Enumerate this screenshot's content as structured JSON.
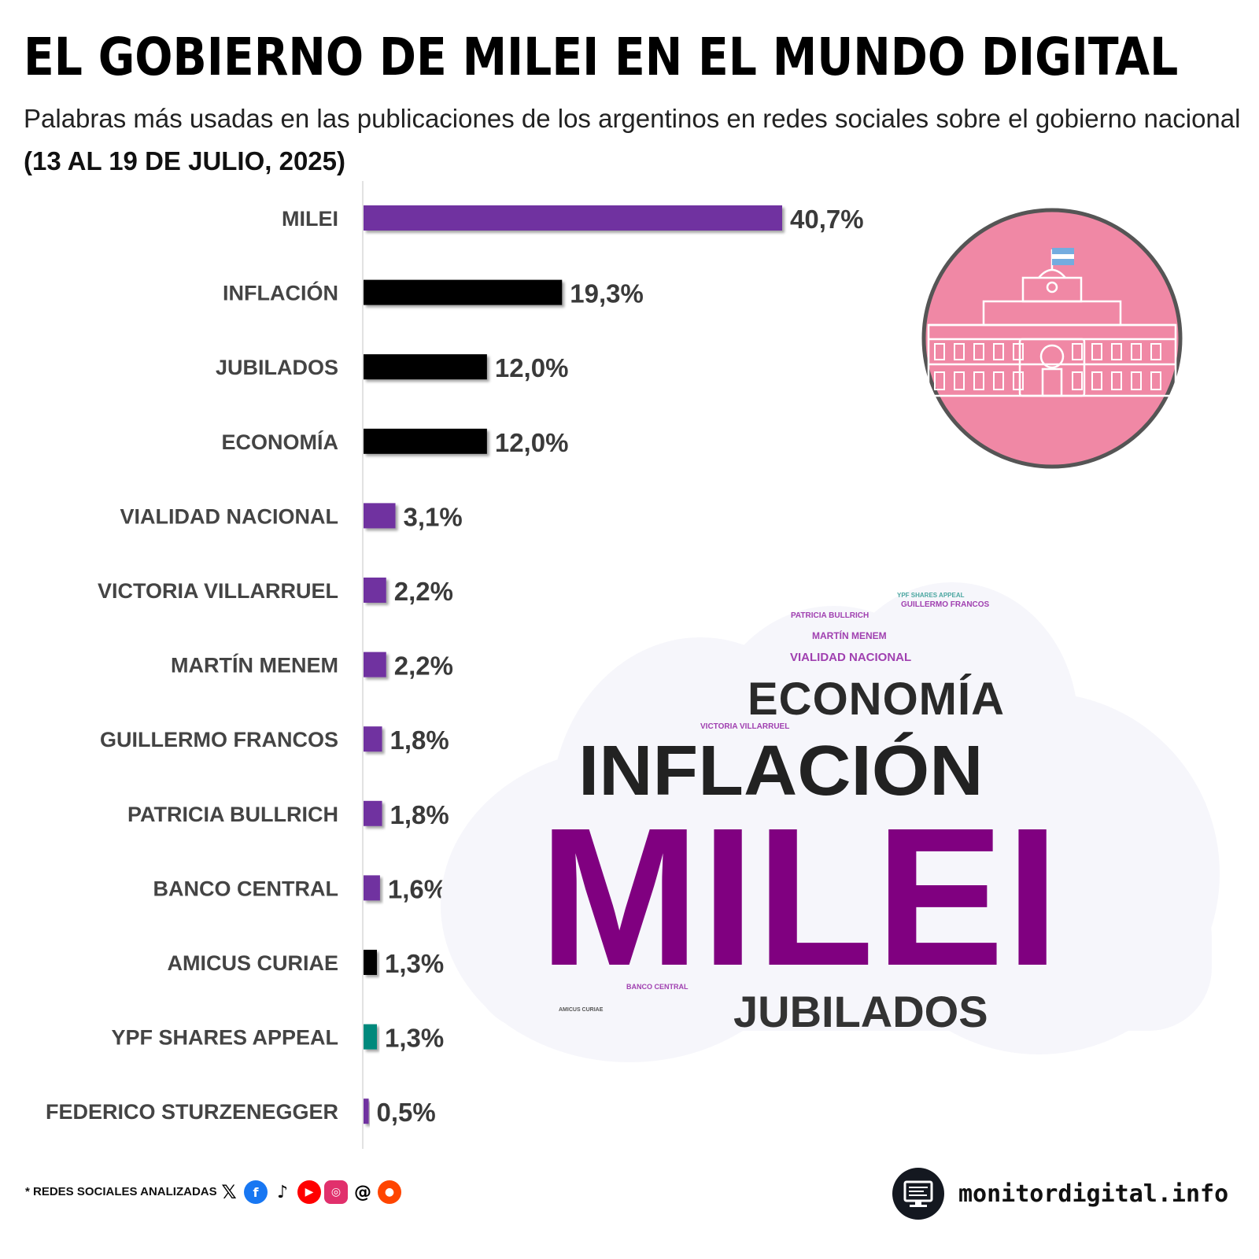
{
  "header": {
    "title": "EL GOBIERNO DE MILEI EN EL MUNDO DIGITAL",
    "subtitle": "Palabras más usadas en las publicaciones de los argentinos en redes sociales sobre el gobierno nacional",
    "date_range": "(13 AL 19 DE JULIO, 2025)"
  },
  "colors": {
    "purple": "#7030A0",
    "black": "#000000",
    "teal": "#00897B",
    "cloud_purple": "#800080",
    "seal_pink": "#F088A5"
  },
  "chart_data": {
    "type": "bar",
    "orientation": "horizontal",
    "categories": [
      "MILEI",
      "INFLACIÓN",
      "JUBILADOS",
      "ECONOMÍA",
      "VIALIDAD NACIONAL",
      "VICTORIA VILLARRUEL",
      "MARTÍN MENEM",
      "GUILLERMO FRANCOS",
      "PATRICIA BULLRICH",
      "BANCO CENTRAL",
      "AMICUS CURIAE",
      "YPF SHARES APPEAL",
      "FEDERICO STURZENEGGER"
    ],
    "values": [
      40.7,
      19.3,
      12.0,
      12.0,
      3.1,
      2.2,
      2.2,
      1.8,
      1.8,
      1.6,
      1.3,
      1.3,
      0.5
    ],
    "value_labels": [
      "40,7%",
      "19,3%",
      "12,0%",
      "12,0%",
      "3,1%",
      "2,2%",
      "2,2%",
      "1,8%",
      "1,8%",
      "1,6%",
      "1,3%",
      "1,3%",
      "0,5%"
    ],
    "bar_colors": [
      "#7030A0",
      "#000000",
      "#000000",
      "#000000",
      "#7030A0",
      "#7030A0",
      "#7030A0",
      "#7030A0",
      "#7030A0",
      "#7030A0",
      "#000000",
      "#00897B",
      "#7030A0"
    ],
    "xlim": [
      0,
      100
    ],
    "grid": false,
    "legend": "none"
  },
  "word_cloud": [
    {
      "text": "MILEI",
      "color": "#800080"
    },
    {
      "text": "INFLACIÓN",
      "color": "#222222"
    },
    {
      "text": "ECONOMÍA",
      "color": "#2a2a2a"
    },
    {
      "text": "JUBILADOS",
      "color": "#333333"
    },
    {
      "text": "VIALIDAD NACIONAL",
      "color": "#A040B0"
    },
    {
      "text": "MARTÍN MENEM",
      "color": "#A040B0"
    },
    {
      "text": "PATRICIA BULLRICH",
      "color": "#A040B0"
    },
    {
      "text": "GUILLERMO FRANCOS",
      "color": "#A040B0"
    },
    {
      "text": "YPF SHARES APPEAL",
      "color": "#4aa6a0"
    },
    {
      "text": "VICTORIA VILLARRUEL",
      "color": "#A040B0"
    },
    {
      "text": "BANCO CENTRAL",
      "color": "#A040B0"
    },
    {
      "text": "AMICUS CURIAE",
      "color": "#555555"
    }
  ],
  "footer": {
    "note": "* REDES SOCIALES ANALIZADAS",
    "social_icons": [
      "x-icon",
      "facebook-icon",
      "tiktok-icon",
      "youtube-icon",
      "instagram-icon",
      "threads-icon",
      "reddit-icon"
    ],
    "brand": "monitordigital.info"
  }
}
